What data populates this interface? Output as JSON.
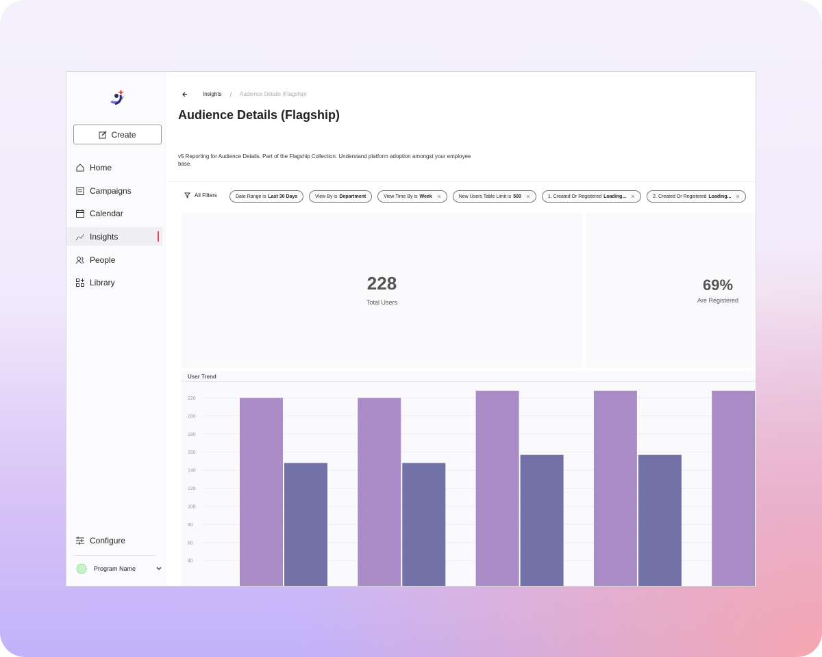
{
  "sidebar": {
    "create": "Create",
    "nav": [
      {
        "label": "Home"
      },
      {
        "label": "Campaigns"
      },
      {
        "label": "Calendar"
      },
      {
        "label": "Insights",
        "active": true
      },
      {
        "label": "People"
      },
      {
        "label": "Library"
      }
    ],
    "configure": "Configure",
    "program": "Program Name"
  },
  "breadcrumb": [
    "Insights",
    "Audience Details (Flagship)"
  ],
  "header": {
    "title": "Audience Details (Flagship)",
    "description": "v5 Reporting for Audience Details. Part of the Flagship Collection. Understand platform adoption amongst your employee base."
  },
  "filters": {
    "label": "All Filters",
    "chips": [
      {
        "label": "Date Range is",
        "value": "Last 30 Days",
        "removable": false
      },
      {
        "label": "View By is",
        "value": "Department",
        "removable": false
      },
      {
        "label": "View Time By is",
        "value": "Week",
        "removable": true
      },
      {
        "label": "New Users Table Limit is",
        "value": "500",
        "removable": true
      },
      {
        "label": "1. Created Or Registered",
        "value": "Loading...",
        "removable": true
      },
      {
        "label": "2. Created Or Registered",
        "value": "Loading...",
        "removable": true
      }
    ]
  },
  "kpis": [
    {
      "value": "228",
      "label": "Total Users"
    },
    {
      "value": "69%",
      "label": "Are Registered"
    }
  ],
  "chart_data": {
    "type": "bar",
    "title": "User Trend",
    "categories": [
      null,
      null,
      null,
      null,
      null
    ],
    "series": [
      {
        "color": "#a98bc5",
        "values": [
          220,
          220,
          228,
          228,
          228
        ]
      },
      {
        "color": "#7272a9",
        "values": [
          148,
          148,
          157,
          157,
          null
        ]
      }
    ],
    "ylim": [
      0,
      240
    ],
    "yticks": [
      40,
      60,
      80,
      100,
      120,
      140,
      160,
      180,
      200,
      220
    ],
    "grid": true
  }
}
